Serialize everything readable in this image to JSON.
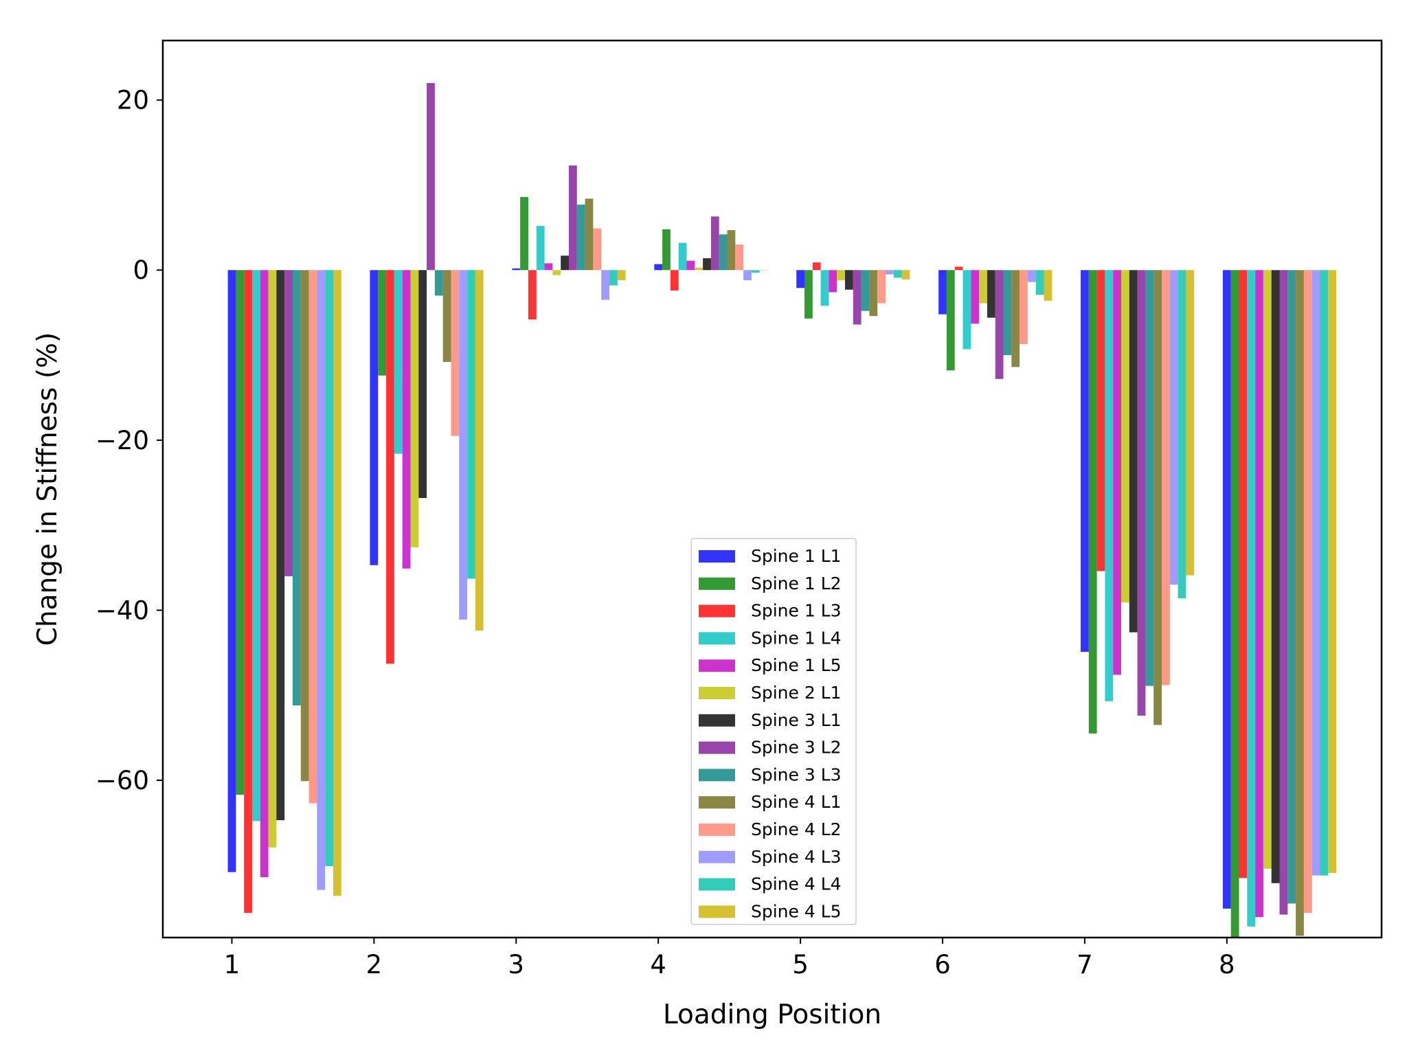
{
  "chart_data": {
    "type": "bar",
    "xlabel": "Loading Position",
    "ylabel": "Change in Stiffness (%)",
    "categories": [
      "1",
      "2",
      "3",
      "4",
      "5",
      "6",
      "7",
      "8"
    ],
    "ylim": [
      -78.5,
      27
    ],
    "yticks": [
      20,
      0,
      -20,
      -40,
      -60
    ],
    "ytick_labels": [
      "20",
      "0",
      "−20",
      "−40",
      "−60"
    ],
    "legend_position": "lower-center",
    "series": [
      {
        "name": "Spine 1 L1",
        "color": "#3333ff",
        "values": [
          -70.8,
          -34.7,
          0.2,
          0.7,
          -2.1,
          -5.2,
          -44.9,
          -75.1
        ]
      },
      {
        "name": "Spine 1 L2",
        "color": "#339933",
        "values": [
          -61.7,
          -12.4,
          8.6,
          4.8,
          -5.7,
          -11.8,
          -54.5,
          -78.5
        ]
      },
      {
        "name": "Spine 1 L3",
        "color": "#ff3333",
        "values": [
          -75.6,
          -46.3,
          -5.8,
          -2.4,
          0.9,
          0.4,
          -35.4,
          -71.5
        ]
      },
      {
        "name": "Spine 1 L4",
        "color": "#33cccc",
        "values": [
          -64.8,
          -21.6,
          5.2,
          3.2,
          -4.2,
          -9.3,
          -50.7,
          -77.2
        ]
      },
      {
        "name": "Spine 1 L5",
        "color": "#cc33cc",
        "values": [
          -71.4,
          -35.1,
          0.8,
          1.1,
          -2.6,
          -6.3,
          -47.6,
          -76.1
        ]
      },
      {
        "name": "Spine 2 L1",
        "color": "#cccc33",
        "values": [
          -67.9,
          -32.6,
          -0.6,
          0.3,
          -1.2,
          -3.9,
          -39.1,
          -70.4
        ]
      },
      {
        "name": "Spine 3 L1",
        "color": "#333333",
        "values": [
          -64.7,
          -26.8,
          1.7,
          1.4,
          -2.3,
          -5.6,
          -42.6,
          -72.1
        ]
      },
      {
        "name": "Spine 3 L2",
        "color": "#9944aa",
        "values": [
          -36.0,
          22.0,
          12.3,
          6.3,
          -6.4,
          -12.8,
          -52.4,
          -75.8
        ]
      },
      {
        "name": "Spine 3 L3",
        "color": "#339999",
        "values": [
          -51.2,
          -3.0,
          7.7,
          4.2,
          -4.8,
          -10.0,
          -48.9,
          -74.5
        ]
      },
      {
        "name": "Spine 4 L1",
        "color": "#888844",
        "values": [
          -60.1,
          -10.8,
          8.4,
          4.7,
          -5.4,
          -11.4,
          -53.5,
          -78.3
        ]
      },
      {
        "name": "Spine 4 L2",
        "color": "#ff9988",
        "values": [
          -62.7,
          -19.5,
          4.9,
          3.0,
          -3.9,
          -8.7,
          -48.8,
          -75.6
        ]
      },
      {
        "name": "Spine 4 L3",
        "color": "#a09cff",
        "values": [
          -72.9,
          -41.1,
          -3.5,
          -1.2,
          -0.5,
          -1.4,
          -37.0,
          -71.2
        ]
      },
      {
        "name": "Spine 4 L4",
        "color": "#33ccbb",
        "values": [
          -70.1,
          -36.3,
          -1.8,
          -0.3,
          -0.9,
          -2.9,
          -38.6,
          -71.2
        ]
      },
      {
        "name": "Spine 4 L5",
        "color": "#d4c030",
        "values": [
          -73.6,
          -42.4,
          -1.2,
          0.0,
          -1.1,
          -3.6,
          -35.9,
          -70.9
        ]
      }
    ]
  }
}
